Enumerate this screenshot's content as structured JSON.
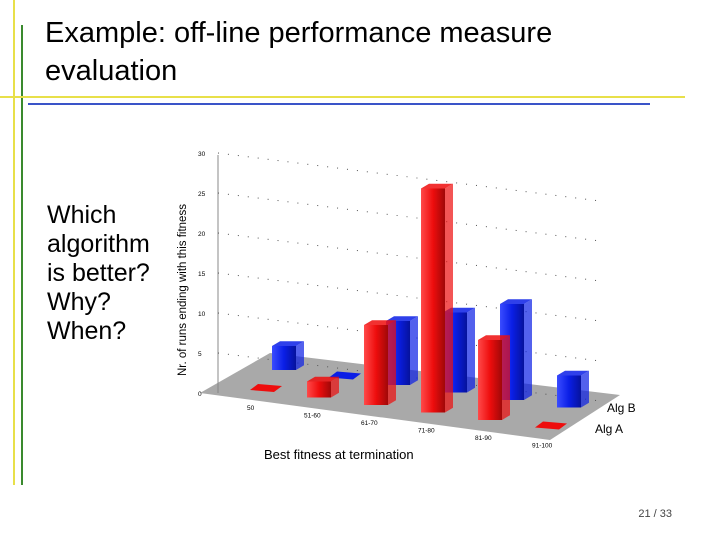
{
  "slide": {
    "title": "Example: off-line performance measure\nevaluation",
    "question_lines": [
      "Which",
      "algorithm",
      "is better?",
      "Why?",
      "When?"
    ],
    "page_number": "21 / 33",
    "accent_colors": {
      "yellow": "#e8e04a",
      "green": "#3a8a2e",
      "blue": "#3a54c8"
    }
  },
  "chart_data": {
    "type": "bar",
    "title": "",
    "xlabel": "Best fitness at termination",
    "ylabel": "Nr. of runs ending with this fitness",
    "categories": [
      "50",
      "51-60",
      "61-70",
      "71-80",
      "81-90",
      "91-100"
    ],
    "y_ticks": [
      "0",
      "5",
      "10",
      "15",
      "20",
      "25",
      "30"
    ],
    "ylim": [
      0,
      30
    ],
    "grid": true,
    "legend": "bottom-right",
    "series": [
      {
        "name": "Alg B",
        "color": "#0a1ee6",
        "values": [
          3,
          0,
          8,
          10,
          12,
          4
        ]
      },
      {
        "name": "Alg A",
        "color": "#ee0d0d",
        "values": [
          0,
          2,
          10,
          28,
          10,
          0
        ]
      }
    ]
  }
}
